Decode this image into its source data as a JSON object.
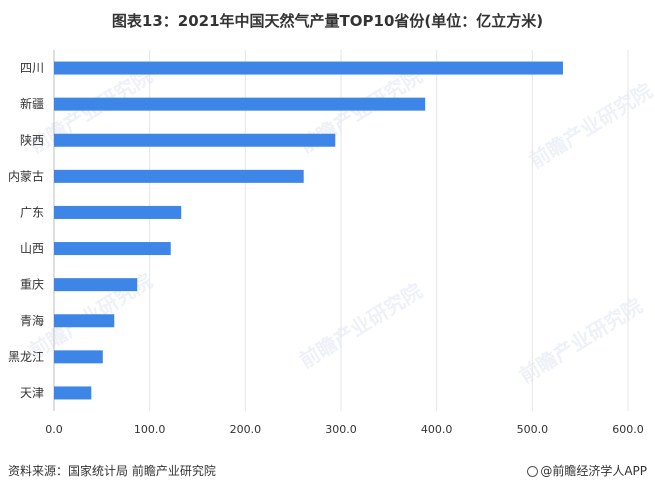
{
  "title": "图表13：2021年中国天然气产量TOP10省份(单位：亿立方米)",
  "footer": {
    "source": "资料来源：国家统计局 前瞻产业研究院",
    "brand": "@前瞻经济学人APP"
  },
  "watermark": "前瞻产业研究院",
  "colors": {
    "bar": "#3d85e6",
    "grid": "#e6e6e6",
    "axis": "#bfbfbf"
  },
  "chart_data": {
    "type": "bar",
    "orientation": "horizontal",
    "title": "图表13：2021年中国天然气产量TOP10省份(单位：亿立方米)",
    "categories": [
      "四川",
      "新疆",
      "陕西",
      "内蒙古",
      "广东",
      "山西",
      "重庆",
      "青海",
      "黑龙江",
      "天津"
    ],
    "values": [
      532,
      388,
      294,
      261,
      133,
      122,
      87,
      63,
      51,
      39
    ],
    "xlim": [
      0,
      600
    ],
    "xticks": [
      0,
      100,
      200,
      300,
      400,
      500,
      600
    ],
    "xtick_labels": [
      "0.0",
      "100.0",
      "200.0",
      "300.0",
      "400.0",
      "500.0",
      "600.0"
    ],
    "xlabel": "",
    "ylabel": "",
    "grid": "vertical",
    "legend": "none"
  }
}
